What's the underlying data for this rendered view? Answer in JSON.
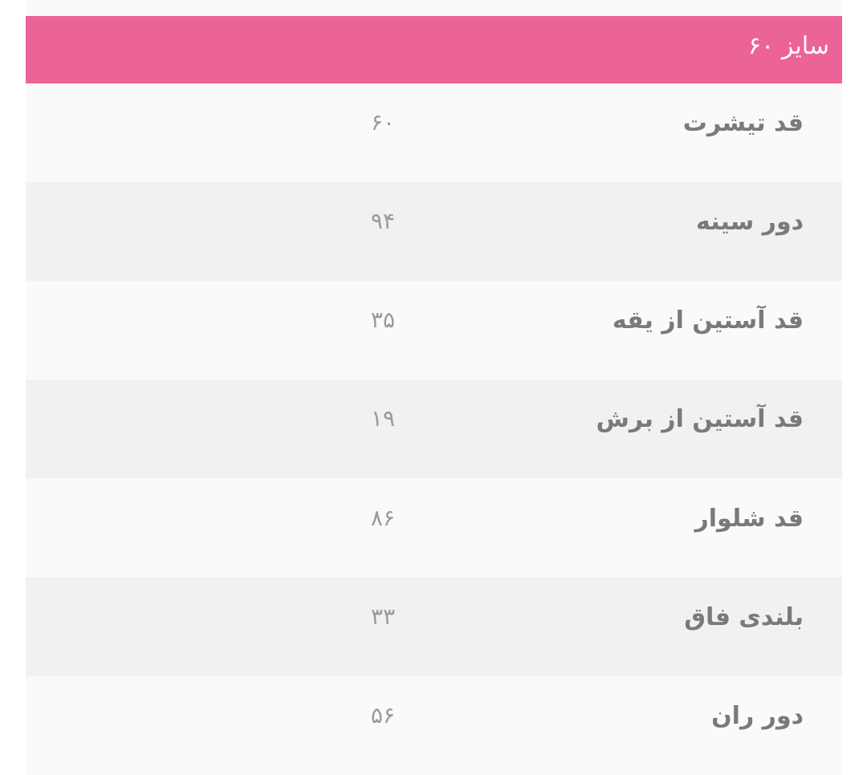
{
  "header": {
    "title": "سایز ۶۰"
  },
  "rows": [
    {
      "label": "قد تیشرت",
      "value": "۶۰"
    },
    {
      "label": "دور سینه",
      "value": "۹۴"
    },
    {
      "label": "قد آستین از یقه",
      "value": "۳۵"
    },
    {
      "label": "قد آستین از برش",
      "value": "۱۹"
    },
    {
      "label": "قد شلوار",
      "value": "۸۶"
    },
    {
      "label": "بلندی فاق",
      "value": "۳۳"
    },
    {
      "label": "دور ران",
      "value": "۵۶"
    }
  ],
  "colors": {
    "header": "#ec6397",
    "row_light": "#fafafa",
    "row_dark": "#f1f1f1"
  }
}
